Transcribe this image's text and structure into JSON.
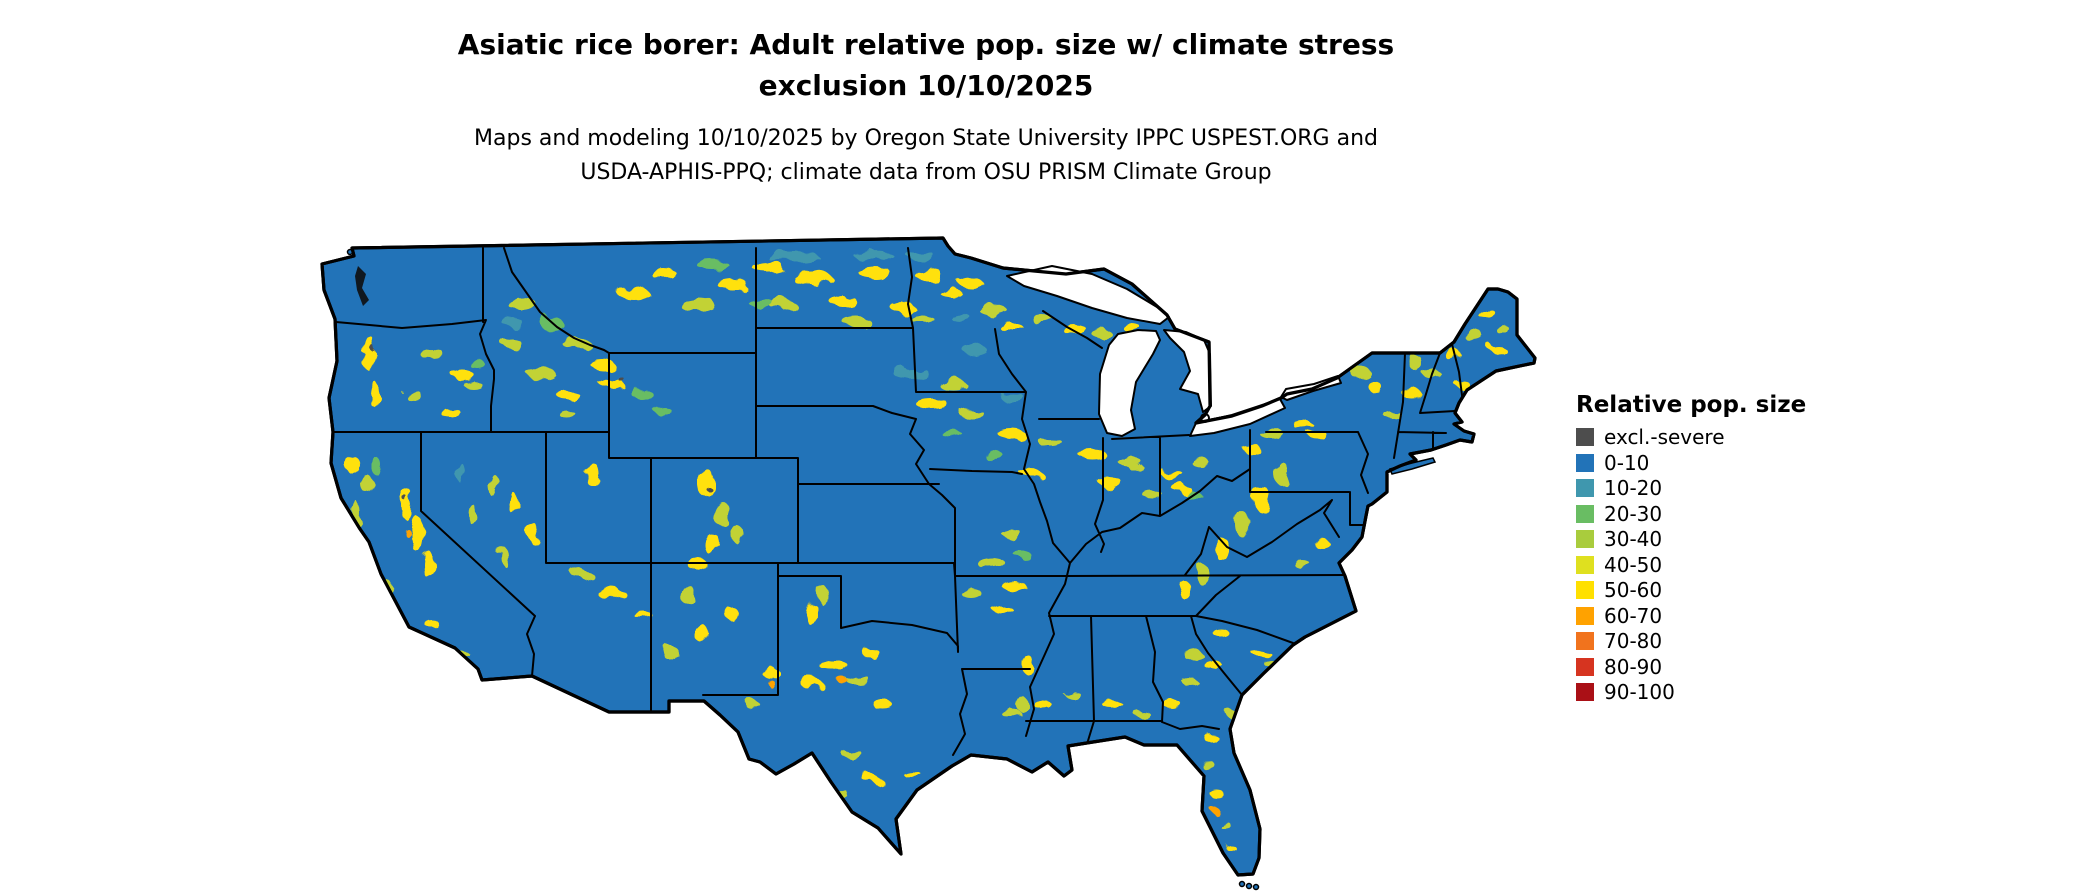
{
  "title": {
    "line1": "Asiatic rice borer: Adult relative pop. size w/ climate stress",
    "line2": "exclusion 10/10/2025"
  },
  "subtitle": {
    "line1": "Maps and modeling 10/10/2025 by Oregon State University IPPC USPEST.ORG and",
    "line2": "USDA-APHIS-PPQ; climate data from OSU PRISM Climate Group"
  },
  "legend": {
    "title": "Relative pop. size",
    "items": [
      {
        "label": "excl.-severe",
        "color": "#4d4d4d"
      },
      {
        "label": "0-10",
        "color": "#2273b8"
      },
      {
        "label": "10-20",
        "color": "#3f97ae"
      },
      {
        "label": "20-30",
        "color": "#69bd63"
      },
      {
        "label": "30-40",
        "color": "#a9cc3d"
      },
      {
        "label": "40-50",
        "color": "#dfe01f"
      },
      {
        "label": "50-60",
        "color": "#ffe000"
      },
      {
        "label": "60-70",
        "color": "#ffa200"
      },
      {
        "label": "70-80",
        "color": "#f1731d"
      },
      {
        "label": "80-90",
        "color": "#d63420"
      },
      {
        "label": "90-100",
        "color": "#aa1016"
      }
    ]
  },
  "map": {
    "region": "Contiguous United States",
    "base_color": "#2273b8",
    "border_color": "#000000",
    "background_color": "#ffffff"
  }
}
